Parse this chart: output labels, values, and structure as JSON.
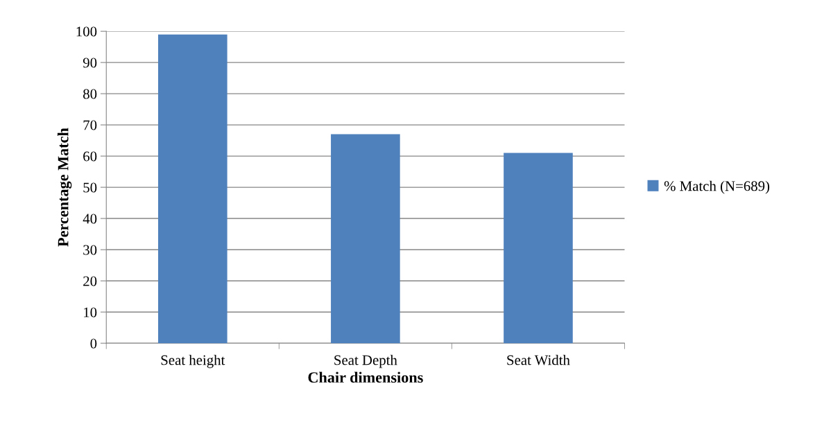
{
  "chart_data": {
    "type": "bar",
    "xlabel": "Chair dimensions",
    "ylabel": "Percentage Match",
    "categories": [
      "Seat height",
      "Seat Depth",
      "Seat Width"
    ],
    "series": [
      {
        "name": "% Match (N=689)",
        "color": "#4f81bd",
        "values": [
          99,
          67,
          61
        ]
      }
    ],
    "ylim": [
      0,
      100
    ],
    "yticks": [
      0,
      10,
      20,
      30,
      40,
      50,
      60,
      70,
      80,
      90,
      100
    ],
    "grid": "y",
    "legend": "right"
  }
}
